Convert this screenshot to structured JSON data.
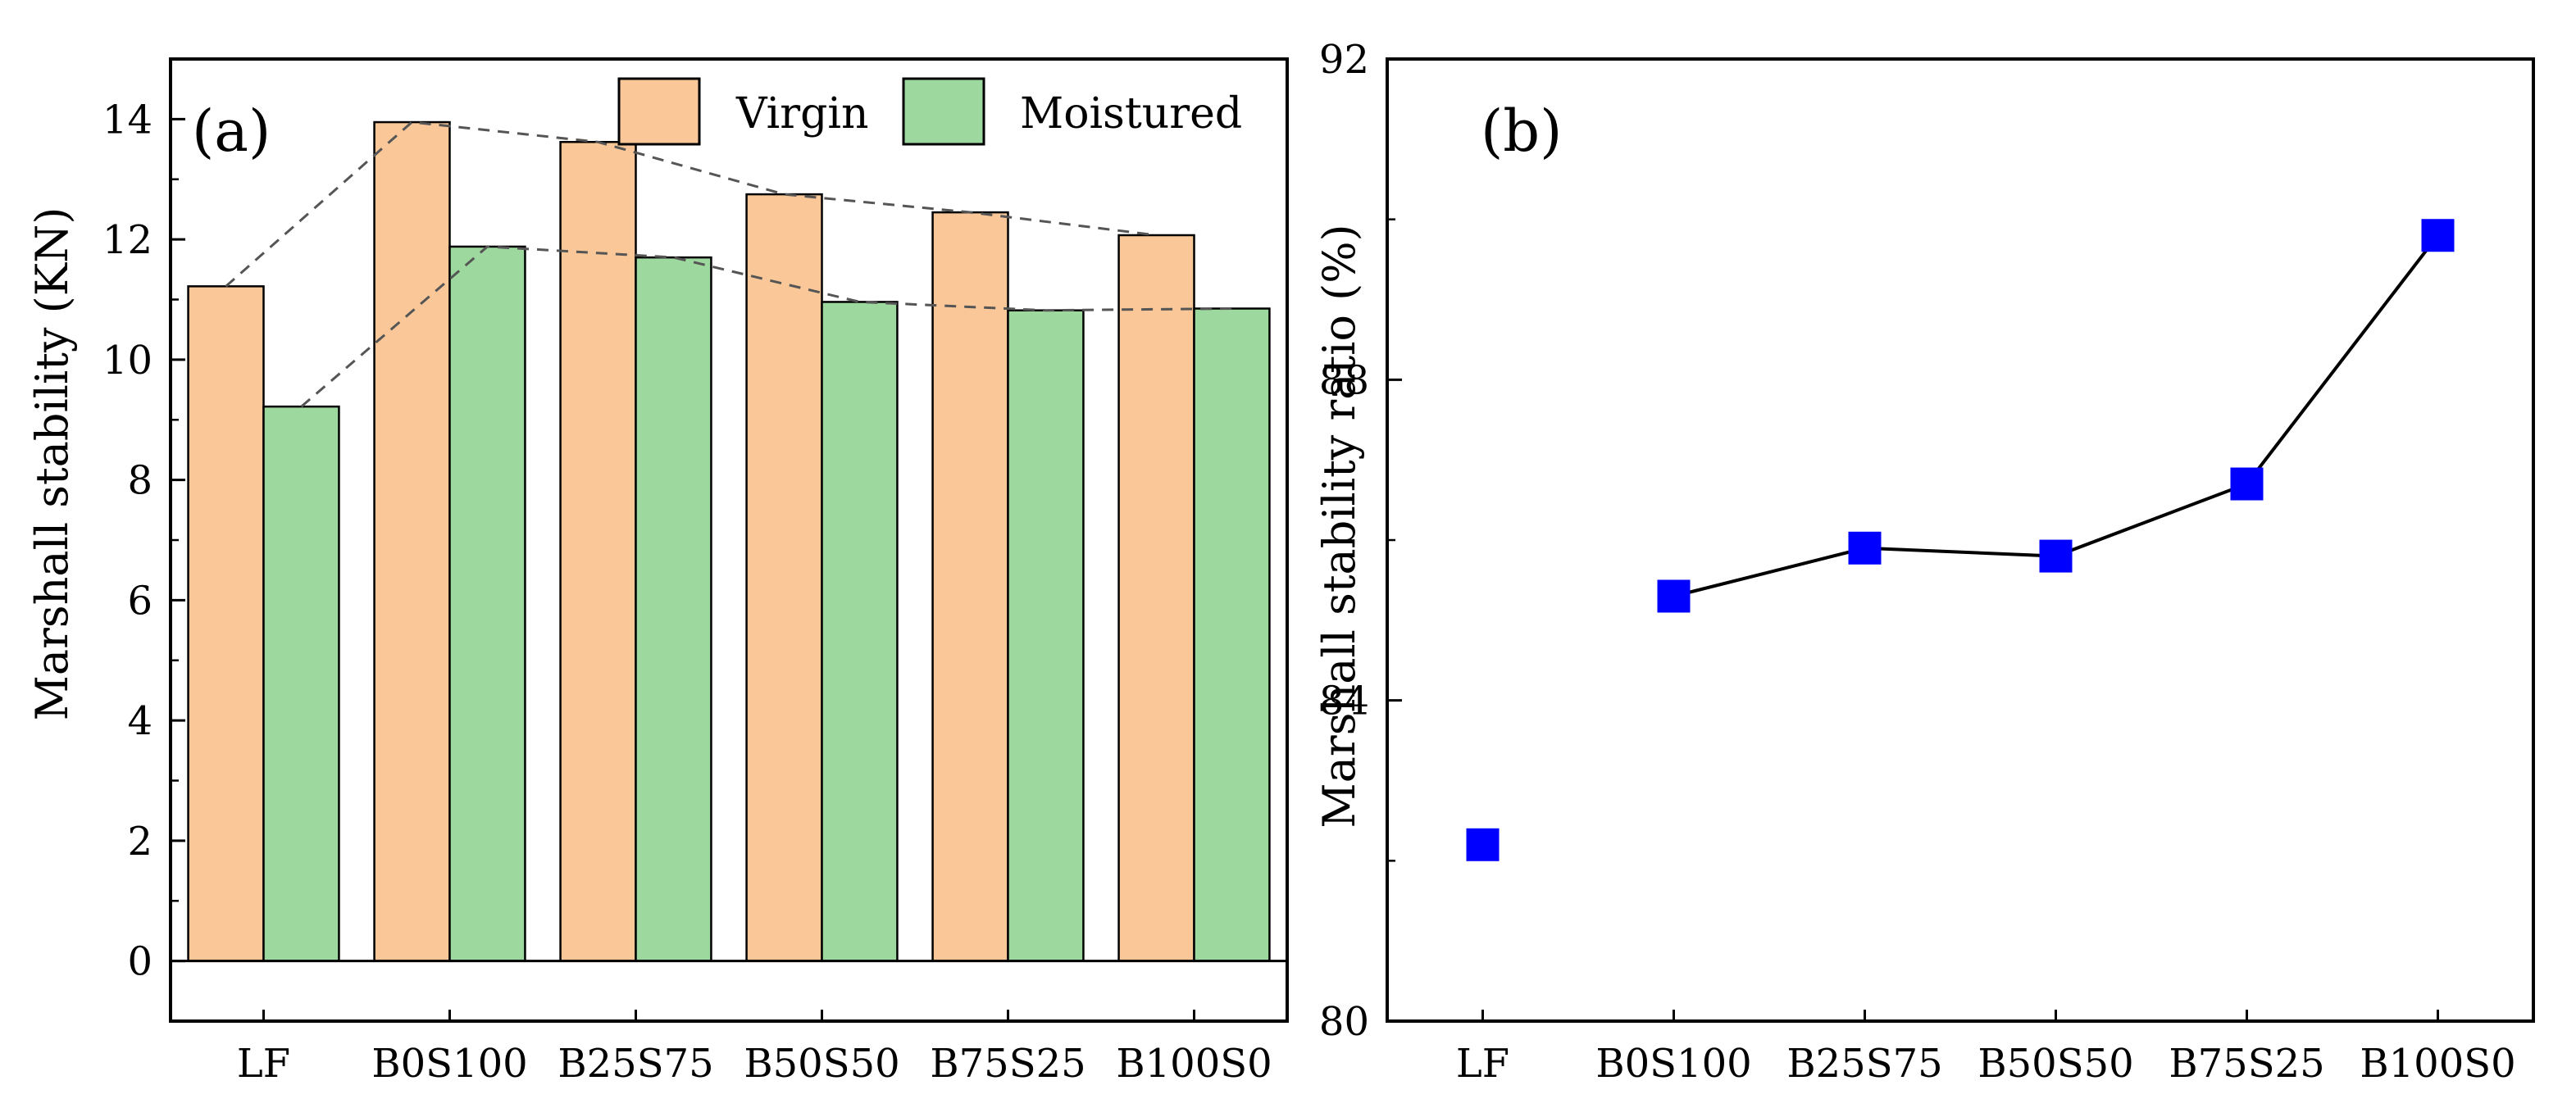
{
  "chart_data": [
    {
      "panel": "(a)",
      "type": "bar",
      "categories": [
        "LF",
        "B0S100",
        "B25S75",
        "B50S50",
        "B75S25",
        "B100S0"
      ],
      "series": [
        {
          "name": "Virgin",
          "color": "#FAC898",
          "values": [
            11.22,
            13.95,
            13.62,
            12.75,
            12.45,
            12.07
          ]
        },
        {
          "name": "Moistured",
          "color": "#9DD89E",
          "values": [
            9.22,
            11.88,
            11.7,
            10.96,
            10.82,
            10.85
          ]
        }
      ],
      "trend_lines": "dashed lines connecting bar tops of each series",
      "ylabel": "Marshall stability (KN)",
      "ylim": [
        -1,
        15
      ],
      "yticks": [
        "0",
        "2",
        "4",
        "6",
        "8",
        "10",
        "12",
        "14"
      ],
      "ytick_values": [
        0,
        2,
        4,
        6,
        8,
        10,
        12,
        14
      ],
      "legend": [
        "Virgin",
        "Moistured"
      ],
      "legend_position": "top-right"
    },
    {
      "panel": "(b)",
      "type": "line",
      "categories": [
        "LF",
        "B0S100",
        "B25S75",
        "B50S50",
        "B75S25",
        "B100S0"
      ],
      "values": [
        82.2,
        85.3,
        85.9,
        85.8,
        86.7,
        89.8
      ],
      "connected_from_index": 1,
      "marker": "square",
      "marker_color": "#0000FF",
      "ylabel": "Marshall stability ratio (%)",
      "ylim": [
        80,
        92
      ],
      "yticks": [
        "80",
        "84",
        "88",
        "92"
      ],
      "ytick_values": [
        80,
        84,
        88,
        92
      ]
    }
  ]
}
